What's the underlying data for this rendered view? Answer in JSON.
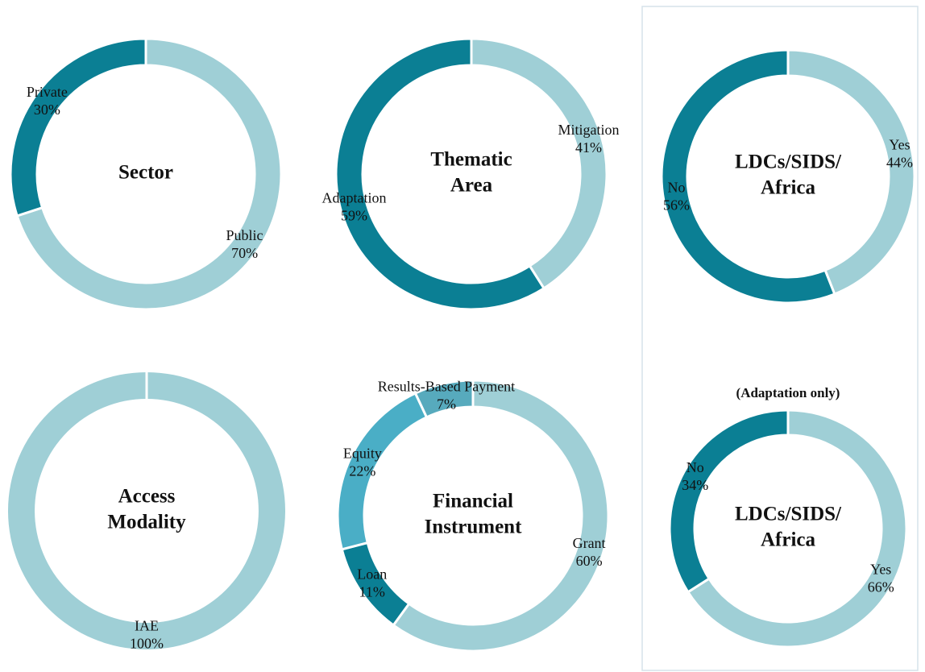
{
  "chart_data": [
    {
      "type": "donut",
      "title": [
        "Sector"
      ],
      "categories": [
        "Public",
        "Private"
      ],
      "values": [
        70,
        30
      ],
      "value_labels": [
        "70%",
        "30%"
      ],
      "colors": [
        "#9fcfd6",
        "#0b7f94"
      ]
    },
    {
      "type": "donut",
      "title": [
        "Thematic",
        "Area"
      ],
      "categories": [
        "Mitigation",
        "Adaptation"
      ],
      "values": [
        41,
        59
      ],
      "value_labels": [
        "41%",
        "59%"
      ],
      "colors": [
        "#9fcfd6",
        "#0b7f94"
      ]
    },
    {
      "type": "donut",
      "title": [
        "LDCs/SIDS/",
        "Africa"
      ],
      "categories": [
        "Yes",
        "No"
      ],
      "values": [
        44,
        56
      ],
      "value_labels": [
        "44%",
        "56%"
      ],
      "colors": [
        "#9fcfd6",
        "#0b7f94"
      ]
    },
    {
      "type": "donut",
      "title": [
        "Access",
        "Modality"
      ],
      "categories": [
        "IAE"
      ],
      "values": [
        100
      ],
      "value_labels": [
        "100%"
      ],
      "colors": [
        "#9fcfd6"
      ]
    },
    {
      "type": "donut",
      "title": [
        "Financial",
        "Instrument"
      ],
      "categories": [
        "Grant",
        "Loan",
        "Equity",
        "Results-Based Payment"
      ],
      "values": [
        60,
        11,
        22,
        7
      ],
      "value_labels": [
        "60%",
        "11%",
        "22%",
        "7%"
      ],
      "colors": [
        "#9fcfd6",
        "#0b7f94",
        "#4aaec6",
        "#57aabd"
      ]
    },
    {
      "type": "donut",
      "subtitle": "(Adaptation only)",
      "title": [
        "LDCs/SIDS/",
        "Africa"
      ],
      "categories": [
        "Yes",
        "No"
      ],
      "values": [
        66,
        34
      ],
      "value_labels": [
        "66%",
        "34%"
      ],
      "colors": [
        "#9fcfd6",
        "#0b7f94"
      ]
    }
  ]
}
